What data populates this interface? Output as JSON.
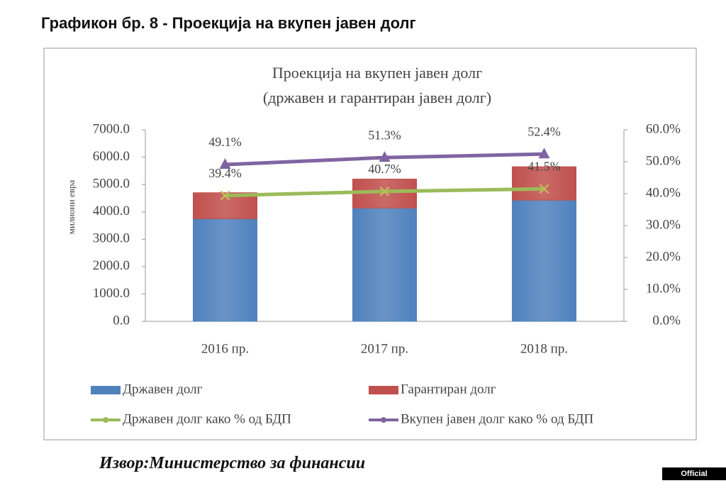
{
  "heading": "Графикон бр. 8 - Проекција на вкупен јавен долг",
  "chart_data": {
    "type": "bar",
    "title": "Проекција на вкупен јавен долг",
    "subtitle": "(државен и гарантиран јавен долг)",
    "y_label": "милиони евра",
    "categories": [
      "2016 пр.",
      "2017 пр.",
      "2018 пр."
    ],
    "stacked": true,
    "series": [
      {
        "name": "Државен долг",
        "type": "bar",
        "color": "#4f81bd",
        "values": [
          3750,
          4140,
          4430
        ]
      },
      {
        "name": "Гарантиран долг",
        "type": "bar",
        "color": "#c0504d",
        "values": [
          950,
          1060,
          1220
        ]
      },
      {
        "name": "Државен долг како % од БДП",
        "type": "line",
        "axis": "y2",
        "color": "#9bbb59",
        "marker": "x",
        "values": [
          39.4,
          40.7,
          41.5
        ],
        "value_labels": [
          "39.4%",
          "40.7%",
          "41.5%"
        ]
      },
      {
        "name": "Вкупен јавен долг како % од БДП",
        "type": "line",
        "axis": "y2",
        "color": "#8064a2",
        "marker": "triangle",
        "values": [
          49.1,
          51.3,
          52.4
        ],
        "value_labels": [
          "49.1%",
          "51.3%",
          "52.4%"
        ]
      }
    ],
    "ylim": [
      0,
      7000
    ],
    "yticks": [
      {
        "value": 0,
        "label": "0.0"
      },
      {
        "value": 1000,
        "label": "1000.0"
      },
      {
        "value": 2000,
        "label": "2000.0"
      },
      {
        "value": 3000,
        "label": "3000.0"
      },
      {
        "value": 4000,
        "label": "4000.0"
      },
      {
        "value": 5000,
        "label": "5000.0"
      },
      {
        "value": 6000,
        "label": "6000.0"
      },
      {
        "value": 7000,
        "label": "7000.0"
      }
    ],
    "y2lim": [
      0,
      60
    ],
    "y2ticks": [
      {
        "value": 0,
        "label": "0.0%"
      },
      {
        "value": 10,
        "label": "10.0%"
      },
      {
        "value": 20,
        "label": "20.0%"
      },
      {
        "value": 30,
        "label": "30.0%"
      },
      {
        "value": 40,
        "label": "40.0%"
      },
      {
        "value": 50,
        "label": "50.0%"
      },
      {
        "value": 60,
        "label": "60.0%"
      }
    ],
    "grid": false
  },
  "source": "Извор:Министерство за финансии",
  "badge": "Official publication"
}
